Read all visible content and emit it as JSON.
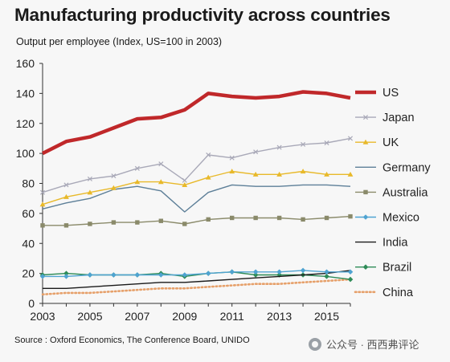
{
  "title": "Manufacturing productivity across countries",
  "subtitle": "Output per employee (Index, US=100 in 2003)",
  "source": "Source : Oxford Economics, The Conference Board, UNIDO",
  "watermark": {
    "account": "公众号 · 西西弗评论",
    "icon": "wechat-icon"
  },
  "chart_data": {
    "type": "line",
    "x": [
      2003,
      2004,
      2005,
      2006,
      2007,
      2008,
      2009,
      2010,
      2011,
      2012,
      2013,
      2014,
      2015,
      2016
    ],
    "xticks": [
      "2003",
      "2005",
      "2007",
      "2009",
      "2011",
      "2013",
      "2015"
    ],
    "xlim": [
      2003,
      2016
    ],
    "ylim": [
      0,
      160
    ],
    "yticks": [
      "0",
      "20",
      "40",
      "60",
      "80",
      "100",
      "120",
      "140",
      "160"
    ],
    "legend_position": "right",
    "grid": false,
    "series": [
      {
        "name": "US",
        "color": "#c0282a",
        "marker": "none",
        "style": "thick",
        "values": [
          100,
          108,
          111,
          117,
          123,
          124,
          129,
          140,
          138,
          137,
          138,
          141,
          140,
          137
        ]
      },
      {
        "name": "Japan",
        "color": "#a9a9b8",
        "marker": "x",
        "style": "solid",
        "values": [
          74,
          79,
          83,
          85,
          90,
          93,
          82,
          99,
          97,
          101,
          104,
          106,
          107,
          110
        ]
      },
      {
        "name": "UK",
        "color": "#e8b92a",
        "marker": "triangle",
        "style": "solid",
        "values": [
          66,
          71,
          74,
          77,
          81,
          81,
          79,
          84,
          88,
          86,
          86,
          88,
          86,
          86
        ]
      },
      {
        "name": "Germany",
        "color": "#5d7f98",
        "marker": "none",
        "style": "solid",
        "values": [
          63,
          67,
          70,
          76,
          78,
          75,
          61,
          74,
          79,
          78,
          78,
          79,
          79,
          78
        ]
      },
      {
        "name": "Australia",
        "color": "#8a8a6a",
        "marker": "square",
        "style": "solid",
        "values": [
          52,
          52,
          53,
          54,
          54,
          55,
          53,
          56,
          57,
          57,
          57,
          56,
          57,
          58
        ]
      },
      {
        "name": "Mexico",
        "color": "#4fa3d1",
        "marker": "diamond",
        "style": "solid",
        "values": [
          18,
          18,
          19,
          19,
          19,
          19,
          19,
          20,
          21,
          21,
          21,
          22,
          21,
          21
        ]
      },
      {
        "name": "India",
        "color": "#1a1a1a",
        "marker": "none",
        "style": "solid",
        "values": [
          10,
          10,
          11,
          12,
          13,
          14,
          14,
          15,
          16,
          17,
          18,
          19,
          20,
          22
        ]
      },
      {
        "name": "Brazil",
        "color": "#2e8b57",
        "marker": "diamond",
        "style": "solid",
        "values": [
          19,
          20,
          19,
          19,
          19,
          20,
          18,
          20,
          21,
          19,
          19,
          19,
          18,
          16
        ]
      },
      {
        "name": "China",
        "color": "#e6a06a",
        "marker": "none",
        "style": "dotted",
        "values": [
          6,
          7,
          7,
          8,
          9,
          10,
          10,
          11,
          12,
          13,
          13,
          14,
          15,
          16
        ]
      }
    ]
  }
}
